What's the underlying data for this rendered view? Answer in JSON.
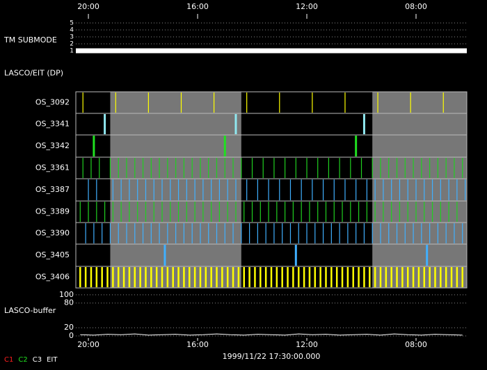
{
  "chart_data": {
    "type": "timeline",
    "xlim": [
      20.46,
      6.14
    ],
    "xticks": [
      {
        "value": 20,
        "label": "20:00"
      },
      {
        "value": 16,
        "label": "16:00"
      },
      {
        "value": 12,
        "label": "12:00"
      },
      {
        "value": 8,
        "label": "08:00"
      }
    ],
    "date": "1999/11/22 17:30:00.000",
    "legend": [
      {
        "name": "C1",
        "color": "#ff2020"
      },
      {
        "name": "C2",
        "color": "#20e020"
      },
      {
        "name": "C3",
        "color": "#ffffff"
      },
      {
        "name": "EIT",
        "color": "#ffffff"
      }
    ],
    "shaded": [
      [
        19.2,
        14.4
      ],
      [
        9.6,
        6.14
      ]
    ],
    "panels": [
      {
        "type": "step",
        "label": "TM SUBMODE",
        "ylim": [
          0.6,
          5.3
        ],
        "yticks": [
          1,
          2,
          3,
          4,
          5
        ],
        "x": [
          20.46,
          6.14
        ],
        "values": [
          1,
          1
        ],
        "color": "#ffffff"
      },
      {
        "type": "blank",
        "label": "LASCO/EIT (DP)"
      },
      {
        "type": "events",
        "label": "OS_3092",
        "color": "#ffff00",
        "times": [
          20.2,
          19.0,
          17.8,
          16.6,
          15.4,
          14.2,
          13.0,
          11.8,
          10.6,
          9.4,
          8.2,
          7.0
        ]
      },
      {
        "type": "events",
        "label": "OS_3341",
        "color": "#90e8f0",
        "times": [
          19.4,
          14.6,
          9.9
        ]
      },
      {
        "type": "events",
        "label": "OS_3342",
        "color": "#20e020",
        "times": [
          19.8,
          15.0,
          10.2
        ]
      },
      {
        "type": "events",
        "label": "OS_3361",
        "color": "#20d020",
        "times": [
          20.2,
          19.9,
          19.6,
          19.2,
          18.9,
          18.6,
          18.3,
          18.0,
          17.7,
          17.4,
          17.1,
          16.8,
          16.5,
          16.2,
          15.9,
          15.6,
          15.3,
          15.0,
          14.7,
          14.4,
          14.0,
          13.6,
          13.2,
          12.8,
          12.4,
          12.0,
          11.6,
          11.2,
          10.8,
          10.4,
          10.0,
          9.6,
          9.3,
          9.0,
          8.7,
          8.4,
          8.1,
          7.8,
          7.5,
          7.2,
          6.9,
          6.6,
          6.3
        ]
      },
      {
        "type": "events",
        "label": "OS_3387",
        "color": "#40b0ff",
        "times": [
          20.0,
          19.7,
          19.1,
          18.8,
          18.5,
          18.2,
          17.9,
          17.6,
          17.3,
          17.0,
          16.7,
          16.4,
          16.1,
          15.8,
          15.5,
          15.2,
          14.9,
          14.6,
          14.2,
          13.8,
          13.4,
          13.0,
          12.6,
          12.2,
          11.8,
          11.4,
          11.0,
          10.6,
          10.2,
          9.8,
          9.5,
          9.2,
          8.9,
          8.6,
          8.3,
          8.0,
          7.7,
          7.4,
          7.1,
          6.8,
          6.5,
          6.2
        ]
      },
      {
        "type": "events",
        "label": "OS_3389",
        "color": "#20d020",
        "times": [
          20.3,
          20.0,
          19.7,
          19.4,
          19.1,
          18.8,
          18.5,
          18.2,
          17.9,
          17.6,
          17.3,
          17.0,
          16.7,
          16.4,
          16.1,
          15.8,
          15.5,
          15.2,
          14.9,
          14.6,
          14.3,
          14.0,
          13.7,
          13.4,
          13.1,
          12.8,
          12.5,
          12.2,
          11.9,
          11.6,
          11.3,
          11.0,
          10.7,
          10.4,
          10.1,
          9.8,
          9.5,
          9.2,
          8.9,
          8.6,
          8.3,
          8.0,
          7.7,
          7.4,
          7.1,
          6.8,
          6.5
        ]
      },
      {
        "type": "events",
        "label": "OS_3390",
        "color": "#40b0ff",
        "times": [
          20.1,
          19.8,
          19.5,
          19.2,
          18.9,
          18.6,
          18.3,
          18.0,
          17.7,
          17.4,
          17.1,
          16.8,
          16.5,
          16.2,
          15.9,
          15.6,
          15.3,
          15.0,
          14.7,
          14.4,
          14.1,
          13.8,
          13.5,
          13.2,
          12.9,
          12.6,
          12.3,
          12.0,
          11.7,
          11.4,
          11.1,
          10.8,
          10.5,
          10.2,
          9.9,
          9.6,
          9.3,
          9.0,
          8.7,
          8.4,
          8.1,
          7.8,
          7.5,
          7.2,
          6.9,
          6.6,
          6.3
        ]
      },
      {
        "type": "events",
        "label": "OS_3405",
        "color": "#40b0ff",
        "times": [
          17.2,
          12.4,
          7.6
        ]
      },
      {
        "type": "events",
        "label": "OS_3406",
        "color": "#ffff00",
        "times": [
          20.3,
          20.1,
          19.9,
          19.7,
          19.5,
          19.3,
          19.1,
          18.9,
          18.7,
          18.5,
          18.3,
          18.1,
          17.9,
          17.7,
          17.5,
          17.3,
          17.1,
          16.9,
          16.7,
          16.5,
          16.3,
          16.1,
          15.9,
          15.7,
          15.5,
          15.3,
          15.1,
          14.9,
          14.7,
          14.5,
          14.3,
          14.1,
          13.9,
          13.7,
          13.5,
          13.3,
          13.1,
          12.9,
          12.7,
          12.5,
          12.3,
          12.1,
          11.9,
          11.7,
          11.5,
          11.3,
          11.1,
          10.9,
          10.7,
          10.5,
          10.3,
          10.1,
          9.9,
          9.7,
          9.5,
          9.3,
          9.1,
          8.9,
          8.7,
          8.5,
          8.3,
          8.1,
          7.9,
          7.7,
          7.5,
          7.3,
          7.1,
          6.9,
          6.7,
          6.5,
          6.3
        ]
      },
      {
        "type": "line",
        "label": "LASCO-buffer",
        "ylim": [
          -5,
          110
        ],
        "yticks": [
          0,
          20,
          80,
          100
        ],
        "color": "#ffffff",
        "x": [
          20.3,
          19.8,
          19.3,
          18.8,
          18.3,
          17.8,
          17.3,
          16.8,
          16.3,
          15.8,
          15.3,
          14.8,
          14.3,
          13.8,
          13.3,
          12.8,
          12.3,
          11.8,
          11.3,
          10.8,
          10.3,
          9.8,
          9.3,
          8.8,
          8.3,
          7.8,
          7.3,
          6.8,
          6.3
        ],
        "values": [
          3,
          2,
          4,
          3,
          5,
          2,
          3,
          4,
          2,
          3,
          5,
          3,
          2,
          4,
          3,
          2,
          5,
          3,
          4,
          2,
          3,
          4,
          2,
          5,
          3,
          2,
          4,
          3,
          2
        ]
      }
    ]
  }
}
